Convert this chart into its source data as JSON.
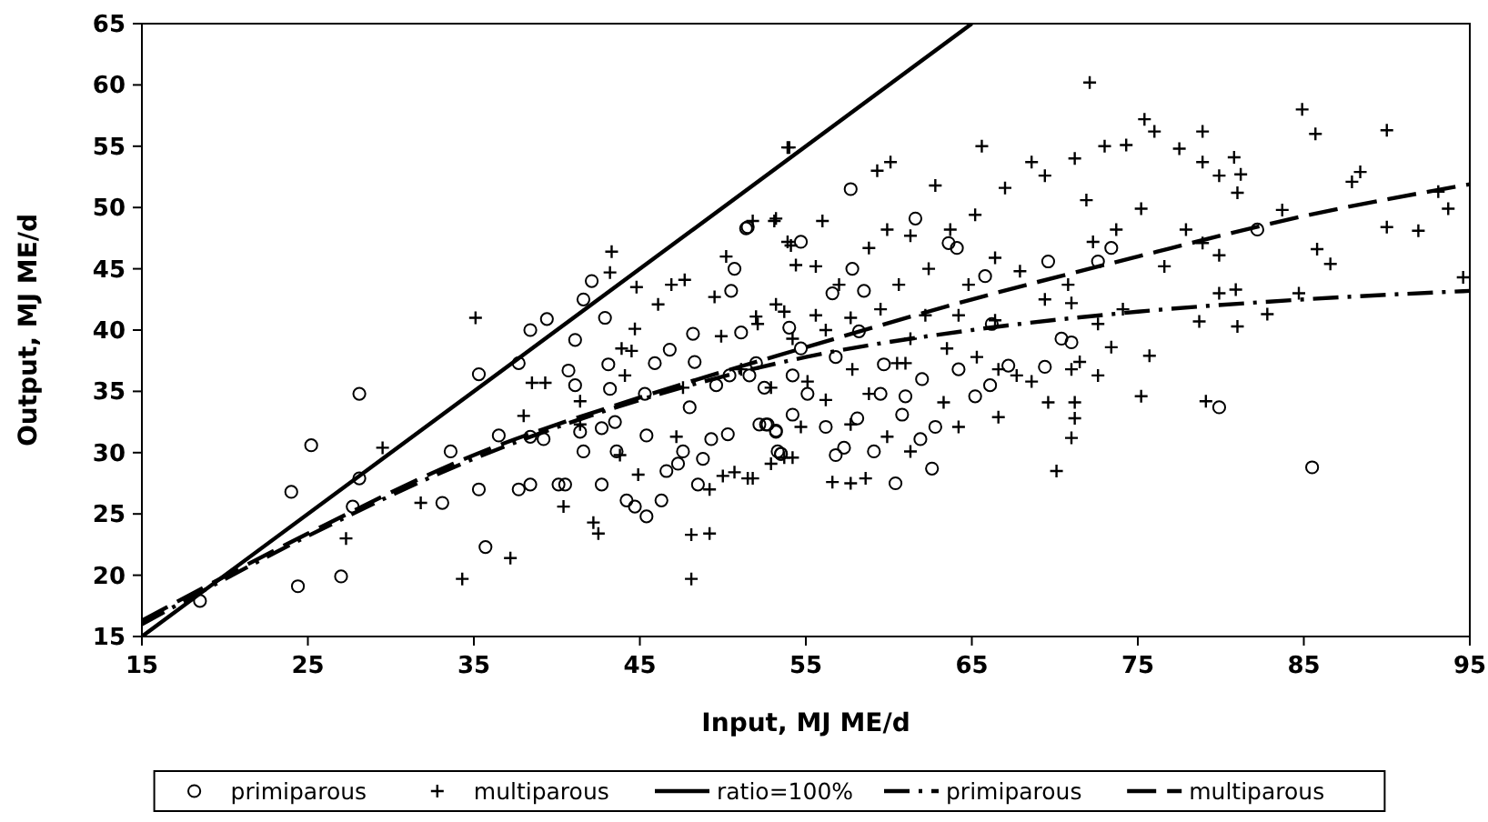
{
  "chart_data": {
    "type": "scatter",
    "xlabel": "Input, MJ ME/d",
    "ylabel": "Output, MJ ME/d",
    "xlim": [
      15,
      95
    ],
    "ylim": [
      15,
      65
    ],
    "xticks": [
      15,
      25,
      35,
      45,
      55,
      65,
      75,
      85,
      95
    ],
    "yticks": [
      15,
      20,
      25,
      30,
      35,
      40,
      45,
      50,
      55,
      60,
      65
    ],
    "grid": false,
    "legend": "bottom",
    "series": [
      {
        "name": "primiparous",
        "marker": "circle",
        "color": "#000000",
        "x": [
          18.5,
          24.0,
          24.4,
          25.2,
          27.0,
          27.7,
          28.1,
          28.1,
          33.1,
          33.6,
          35.3,
          35.3,
          35.7,
          36.5,
          37.7,
          37.7,
          38.4,
          38.4,
          38.4,
          39.2,
          39.4,
          40.1,
          40.5,
          40.7,
          41.1,
          41.1,
          41.4,
          41.6,
          41.6,
          42.1,
          42.7,
          42.7,
          42.9,
          43.1,
          43.2,
          43.5,
          43.6,
          44.2,
          44.7,
          45.4,
          45.3,
          45.4,
          45.9,
          46.3,
          46.6,
          46.8,
          47.3,
          47.6,
          48.0,
          48.2,
          48.3,
          48.5,
          48.8,
          49.3,
          49.6,
          50.3,
          50.5,
          50.7,
          51.4,
          51.6,
          52.2,
          52.5,
          52.7,
          53.2,
          53.3,
          53.5,
          54.0,
          54.2,
          51.5,
          57.7,
          61.6,
          54.7,
          57.8,
          63.6,
          64.1,
          56.6,
          58.5,
          65.8,
          69.6,
          73.4,
          72.6,
          70.4,
          71.0,
          66.2,
          67.2,
          66.1,
          65.2,
          69.4,
          61.0,
          62.0,
          60.8,
          59.5,
          58.1,
          59.1,
          57.3,
          56.8,
          56.2,
          55.1,
          54.2,
          53.5,
          53.2,
          52.6,
          60.4,
          62.6,
          62.8,
          61.9,
          79.9,
          85.5,
          82.2,
          51.1,
          52.0,
          54.7,
          56.8,
          58.2,
          59.7,
          64.2,
          50.4
        ],
        "values": [
          17.9,
          26.8,
          19.1,
          30.6,
          19.9,
          25.6,
          34.8,
          27.9,
          25.9,
          30.1,
          36.4,
          27.0,
          22.3,
          31.4,
          37.3,
          27.0,
          40.0,
          27.4,
          31.3,
          31.1,
          40.9,
          27.4,
          27.4,
          36.7,
          39.2,
          35.5,
          31.7,
          30.1,
          42.5,
          44.0,
          32.0,
          27.4,
          41.0,
          37.2,
          35.2,
          32.5,
          30.1,
          26.1,
          25.6,
          24.8,
          34.8,
          31.4,
          37.3,
          26.1,
          28.5,
          38.4,
          29.1,
          30.1,
          33.7,
          39.7,
          37.4,
          27.4,
          29.5,
          31.1,
          35.5,
          31.5,
          43.2,
          45.0,
          48.3,
          36.3,
          32.3,
          35.3,
          32.3,
          31.7,
          30.1,
          29.9,
          40.2,
          36.3,
          48.4,
          51.5,
          49.1,
          47.2,
          45.0,
          47.1,
          46.7,
          43.0,
          43.2,
          44.4,
          45.6,
          46.7,
          45.6,
          39.3,
          39.0,
          40.5,
          37.1,
          35.5,
          34.6,
          37.0,
          34.6,
          36.0,
          33.1,
          34.8,
          32.8,
          30.1,
          30.4,
          29.8,
          32.1,
          34.8,
          33.1,
          29.9,
          31.8,
          32.3,
          27.5,
          28.7,
          32.1,
          31.1,
          33.7,
          28.8,
          48.2,
          39.8,
          37.3,
          38.5,
          37.8,
          39.9,
          37.2,
          36.8,
          36.3
        ]
      },
      {
        "name": "multiparous",
        "marker": "cross",
        "color": "#000000",
        "x": [
          29.5,
          27.3,
          31.8,
          34.3,
          35.1,
          37.2,
          38.5,
          39.3,
          38.0,
          40.4,
          41.4,
          41.4,
          42.2,
          42.5,
          43.3,
          43.2,
          43.9,
          44.5,
          44.1,
          44.8,
          44.7,
          44.9,
          43.8,
          46.1,
          46.9,
          47.7,
          48.1,
          48.1,
          49.2,
          49.2,
          49.5,
          50.2,
          51.8,
          53.2,
          54.0,
          53.9,
          54.4,
          53.2,
          52.0,
          50.0,
          50.7,
          51.8,
          52.9,
          54.2,
          49.9,
          51.1,
          47.6,
          47.2,
          72.1,
          65.6,
          60.1,
          59.3,
          53.9,
          62.8,
          68.6,
          71.2,
          73.0,
          75.4,
          76.0,
          74.3,
          77.5,
          78.9,
          78.9,
          80.8,
          81.2,
          81.0,
          79.9,
          84.9,
          85.7,
          90.0,
          87.9,
          88.4,
          93.1,
          93.7,
          90.0,
          91.9,
          83.7,
          85.8,
          86.6,
          84.7,
          82.8,
          94.6,
          81.0,
          78.7,
          79.9,
          80.9,
          79.9,
          78.9,
          77.9,
          76.6,
          75.7,
          75.2,
          79.1,
          72.6,
          73.4,
          71.5,
          71.2,
          71.0,
          70.1,
          69.6,
          66.6,
          64.2,
          63.3,
          67.7,
          68.6,
          70.8,
          72.3,
          73.7,
          75.2,
          71.9,
          69.4,
          67.0,
          65.2,
          63.7,
          61.3,
          59.9,
          58.8,
          56.0,
          53.1,
          54.1,
          55.6,
          57.0,
          60.6,
          62.4,
          64.8,
          66.4,
          67.9,
          69.4,
          71.0,
          74.1,
          72.6,
          66.4,
          64.2,
          62.2,
          59.5,
          57.7,
          55.6,
          53.7,
          52.1,
          54.2,
          56.2,
          61.3,
          63.5,
          65.3,
          60.5,
          57.8,
          55.1,
          52.9,
          56.2,
          58.8,
          61.0,
          54.7,
          57.7,
          59.9,
          51.5,
          53.7,
          56.6,
          57.7,
          58.6,
          61.3,
          71.2,
          71.0,
          66.6
        ],
        "values": [
          30.4,
          23.0,
          25.9,
          19.7,
          41.0,
          21.4,
          35.7,
          35.7,
          33.0,
          25.6,
          34.2,
          32.3,
          24.3,
          23.4,
          46.4,
          44.7,
          38.5,
          38.3,
          36.3,
          43.5,
          40.1,
          28.2,
          29.8,
          42.1,
          43.7,
          44.1,
          23.3,
          19.7,
          23.4,
          27.0,
          42.7,
          46.0,
          48.9,
          49.1,
          54.9,
          47.2,
          45.3,
          42.1,
          41.1,
          28.1,
          28.4,
          27.9,
          29.1,
          29.6,
          39.5,
          36.8,
          35.3,
          31.3,
          60.2,
          55.0,
          53.7,
          53.0,
          54.9,
          51.8,
          53.7,
          54.0,
          55.0,
          57.2,
          56.2,
          55.1,
          54.8,
          56.2,
          53.7,
          54.1,
          52.7,
          51.2,
          52.6,
          58.0,
          56.0,
          56.3,
          52.1,
          52.9,
          51.3,
          49.9,
          48.4,
          48.1,
          49.8,
          46.6,
          45.4,
          43.0,
          41.3,
          44.3,
          40.3,
          40.7,
          43.0,
          43.3,
          46.1,
          47.1,
          48.2,
          45.2,
          37.9,
          34.6,
          34.2,
          36.3,
          38.6,
          37.4,
          34.1,
          31.2,
          28.5,
          34.1,
          32.9,
          32.1,
          34.1,
          36.3,
          35.8,
          43.7,
          47.2,
          48.2,
          49.9,
          50.6,
          52.6,
          51.6,
          49.4,
          48.2,
          47.7,
          48.2,
          46.7,
          48.9,
          48.9,
          46.9,
          45.2,
          43.7,
          43.7,
          45.0,
          43.7,
          45.9,
          44.8,
          42.5,
          42.2,
          41.7,
          40.5,
          40.8,
          41.2,
          41.2,
          41.7,
          41.0,
          41.2,
          41.5,
          40.5,
          39.3,
          40.0,
          39.3,
          38.5,
          37.8,
          37.3,
          36.8,
          35.8,
          35.3,
          34.3,
          34.8,
          37.3,
          32.1,
          32.3,
          31.3,
          27.9,
          29.6,
          27.6,
          27.5,
          27.9,
          30.1,
          32.8,
          36.8,
          36.8
        ]
      },
      {
        "name": "ratio=100%",
        "type": "line",
        "line_style": "solid",
        "color": "#000000",
        "x": [
          15,
          65
        ],
        "values": [
          15,
          65
        ]
      },
      {
        "name": "primiparous",
        "type": "line",
        "line_style": "dashdot",
        "color": "#000000",
        "x": [
          15,
          25,
          35,
          45,
          55,
          65,
          75,
          85,
          95
        ],
        "values": [
          16.0,
          23.2,
          29.5,
          34.3,
          37.8,
          40.0,
          41.5,
          42.5,
          43.2
        ]
      },
      {
        "name": "multiparous",
        "type": "line",
        "line_style": "dashed",
        "color": "#000000",
        "x": [
          15,
          25,
          35,
          45,
          55,
          65,
          75,
          85,
          95
        ],
        "values": [
          16.3,
          23.4,
          29.8,
          34.5,
          38.6,
          42.5,
          46.0,
          49.3,
          51.9
        ]
      }
    ]
  }
}
